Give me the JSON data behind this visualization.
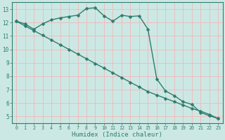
{
  "line1_x": [
    0,
    1,
    2,
    3,
    4,
    5,
    6,
    7,
    8,
    9,
    10,
    11,
    12,
    13,
    14,
    15,
    16,
    17,
    18,
    19,
    20,
    21,
    22,
    23
  ],
  "line1_y": [
    12.1,
    11.9,
    11.5,
    11.9,
    12.2,
    12.35,
    12.45,
    12.55,
    13.05,
    13.1,
    12.5,
    12.1,
    12.55,
    12.45,
    12.5,
    11.5,
    7.8,
    6.9,
    6.55,
    6.1,
    5.9,
    5.3,
    5.05,
    4.85
  ],
  "line2_x": [
    0,
    1,
    2,
    3,
    4,
    5,
    6,
    7,
    8,
    9,
    10,
    11,
    12,
    13,
    14,
    15,
    16,
    17,
    18,
    19,
    20,
    21,
    22,
    23
  ],
  "line2_y": [
    12.1,
    11.75,
    11.4,
    11.05,
    10.7,
    10.35,
    10.0,
    9.65,
    9.3,
    8.95,
    8.6,
    8.25,
    7.9,
    7.55,
    7.2,
    6.85,
    6.6,
    6.35,
    6.1,
    5.85,
    5.6,
    5.4,
    5.15,
    4.85
  ],
  "color": "#2e7d6e",
  "bg_color": "#cce8e4",
  "grid_color_major": "#f0b8b8",
  "grid_color_minor": "#f0b8b8",
  "xlabel": "Humidex (Indice chaleur)",
  "ylim": [
    4.5,
    13.5
  ],
  "xlim": [
    -0.5,
    23.5
  ],
  "yticks": [
    5,
    6,
    7,
    8,
    9,
    10,
    11,
    12,
    13
  ],
  "xticks": [
    0,
    1,
    2,
    3,
    4,
    5,
    6,
    7,
    8,
    9,
    10,
    11,
    12,
    13,
    14,
    15,
    16,
    17,
    18,
    19,
    20,
    21,
    22,
    23
  ],
  "markersize": 2.5,
  "linewidth": 1.0,
  "font_size": 5.5,
  "label_font_size": 6.5
}
